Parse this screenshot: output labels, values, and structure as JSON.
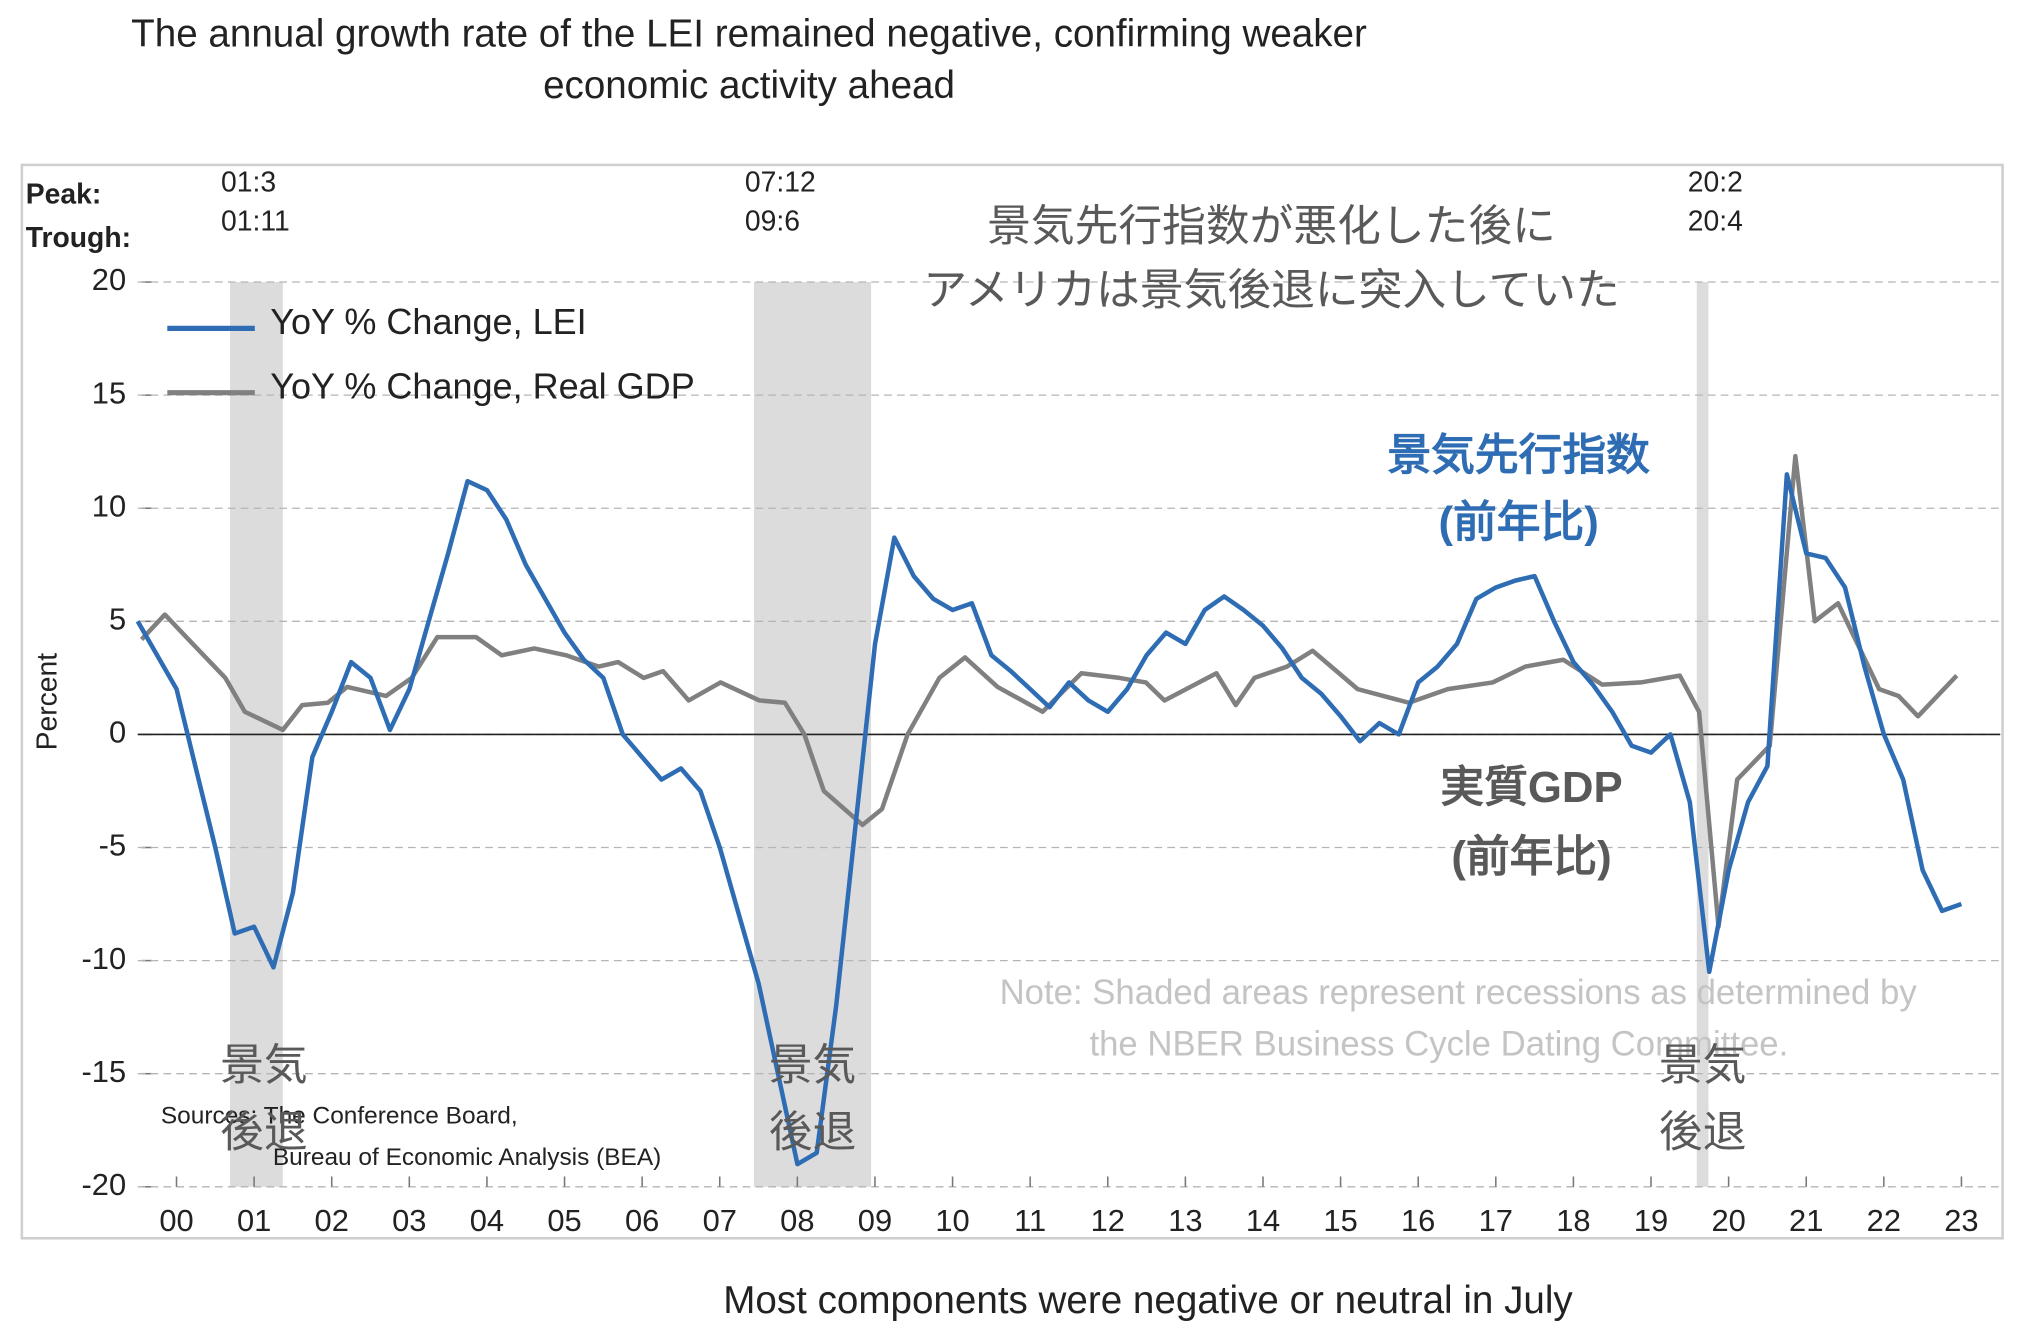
{
  "chart_data": {
    "type": "line",
    "title": [
      "The annual growth rate of the LEI remained negative, confirming weaker",
      "economic activity ahead"
    ],
    "caption": "Most components were negative or neutral in July",
    "ylabel": "Percent",
    "xlim": [
      2000,
      2024
    ],
    "ylim": [
      -20,
      20
    ],
    "yticks": [
      -20,
      -15,
      -10,
      -5,
      0,
      5,
      10,
      15,
      20
    ],
    "xticks": [
      {
        "value": 2000.5,
        "label": "00"
      },
      {
        "value": 2001.5,
        "label": "01"
      },
      {
        "value": 2002.5,
        "label": "02"
      },
      {
        "value": 2003.5,
        "label": "03"
      },
      {
        "value": 2004.5,
        "label": "04"
      },
      {
        "value": 2005.5,
        "label": "05"
      },
      {
        "value": 2006.5,
        "label": "06"
      },
      {
        "value": 2007.5,
        "label": "07"
      },
      {
        "value": 2008.5,
        "label": "08"
      },
      {
        "value": 2009.5,
        "label": "09"
      },
      {
        "value": 2010.5,
        "label": "10"
      },
      {
        "value": 2011.5,
        "label": "11"
      },
      {
        "value": 2012.5,
        "label": "12"
      },
      {
        "value": 2013.5,
        "label": "13"
      },
      {
        "value": 2014.5,
        "label": "14"
      },
      {
        "value": 2015.5,
        "label": "15"
      },
      {
        "value": 2016.5,
        "label": "16"
      },
      {
        "value": 2017.5,
        "label": "17"
      },
      {
        "value": 2018.5,
        "label": "18"
      },
      {
        "value": 2019.5,
        "label": "19"
      },
      {
        "value": 2020.5,
        "label": "20"
      },
      {
        "value": 2021.5,
        "label": "21"
      },
      {
        "value": 2022.5,
        "label": "22"
      },
      {
        "value": 2023.5,
        "label": "23"
      }
    ],
    "grid": true,
    "legend": "top-left",
    "shade_color": "#dcdcdc",
    "peak_label": "Peak:",
    "trough_label": "Trough:",
    "recessions": [
      {
        "start": 2001.19,
        "end": 2001.87,
        "peak": "01:3",
        "trough": "01:11",
        "label": [
          "景気",
          "後退"
        ]
      },
      {
        "start": 2007.94,
        "end": 2009.45,
        "peak": "07:12",
        "trough": "09:6",
        "label": [
          "景気",
          "後退"
        ]
      },
      {
        "start": 2020.09,
        "end": 2020.24,
        "peak": "20:2",
        "trough": "20:4",
        "label": [
          "景気",
          "後退"
        ]
      }
    ],
    "series": [
      {
        "name": "YoY % Change, LEI",
        "color": "#2e6db4",
        "x": [
          2000.0,
          2000.25,
          2000.5,
          2000.75,
          2001.0,
          2001.25,
          2001.5,
          2001.75,
          2002.0,
          2002.25,
          2002.5,
          2002.75,
          2003.0,
          2003.25,
          2003.5,
          2003.75,
          2004.0,
          2004.25,
          2004.5,
          2004.75,
          2005.0,
          2005.25,
          2005.5,
          2005.75,
          2006.0,
          2006.25,
          2006.5,
          2006.75,
          2007.0,
          2007.25,
          2007.5,
          2007.75,
          2008.0,
          2008.25,
          2008.5,
          2008.75,
          2009.0,
          2009.25,
          2009.5,
          2009.75,
          2010.0,
          2010.25,
          2010.5,
          2010.75,
          2011.0,
          2011.25,
          2011.5,
          2011.75,
          2012.0,
          2012.25,
          2012.5,
          2012.75,
          2013.0,
          2013.25,
          2013.5,
          2013.75,
          2014.0,
          2014.25,
          2014.5,
          2014.75,
          2015.0,
          2015.25,
          2015.5,
          2015.75,
          2016.0,
          2016.25,
          2016.5,
          2016.75,
          2017.0,
          2017.25,
          2017.5,
          2017.75,
          2018.0,
          2018.25,
          2018.5,
          2018.75,
          2019.0,
          2019.25,
          2019.5,
          2019.75,
          2020.0,
          2020.25,
          2020.5,
          2020.75,
          2021.0,
          2021.25,
          2021.5,
          2021.75,
          2022.0,
          2022.25,
          2022.5,
          2022.75,
          2023.0,
          2023.25,
          2023.5
        ],
        "values": [
          5,
          3.5,
          2,
          -1.5,
          -5,
          -8.8,
          -8.5,
          -10.3,
          -7,
          -1,
          1,
          3.2,
          2.5,
          0.2,
          2,
          5,
          8,
          11.2,
          10.8,
          9.5,
          7.5,
          6,
          4.5,
          3.3,
          2.5,
          0,
          -1,
          -2,
          -1.5,
          -2.5,
          -5,
          -8,
          -11,
          -15,
          -19,
          -18.5,
          -12,
          -4,
          4,
          8.7,
          7,
          6,
          5.5,
          5.8,
          3.5,
          2.8,
          2,
          1.2,
          2.3,
          1.5,
          1,
          2,
          3.5,
          4.5,
          4,
          5.5,
          6.1,
          5.5,
          4.8,
          3.8,
          2.5,
          1.8,
          0.8,
          -0.3,
          0.5,
          0,
          2.3,
          3,
          4,
          6,
          6.5,
          6.8,
          7,
          5,
          3.2,
          2.2,
          1,
          -0.5,
          -0.8,
          0,
          -3,
          -10.5,
          -6,
          -3,
          -1.4,
          11.5,
          8,
          7.8,
          6.5,
          3,
          0,
          -2,
          -6,
          -7.8,
          -7.5
        ]
      },
      {
        "name": "YoY % Change, Real GDP",
        "color": "#808080",
        "x": [
          2000.05,
          2000.35,
          2000.71,
          2001.13,
          2001.38,
          2001.87,
          2002.12,
          2002.45,
          2002.7,
          2003.2,
          2003.53,
          2003.86,
          2004.36,
          2004.69,
          2005.11,
          2005.52,
          2005.94,
          2006.19,
          2006.52,
          2006.77,
          2007.1,
          2007.51,
          2008.01,
          2008.34,
          2008.59,
          2008.84,
          2009.34,
          2009.59,
          2009.92,
          2010.33,
          2010.66,
          2011.08,
          2011.66,
          2012.16,
          2012.65,
          2012.99,
          2013.23,
          2013.9,
          2014.15,
          2014.39,
          2014.81,
          2015.14,
          2015.72,
          2016.38,
          2016.88,
          2017.46,
          2017.88,
          2018.37,
          2018.87,
          2019.37,
          2019.87,
          2020.12,
          2020.37,
          2020.61,
          2021.03,
          2021.36,
          2021.61,
          2021.91,
          2022.44,
          2022.69,
          2022.94,
          2023.44
        ],
        "values": [
          4.2,
          5.3,
          4,
          2.5,
          1,
          0.2,
          1.3,
          1.4,
          2.1,
          1.7,
          2.5,
          4.3,
          4.3,
          3.5,
          3.8,
          3.5,
          3,
          3.2,
          2.5,
          2.8,
          1.5,
          2.3,
          1.5,
          1.4,
          0,
          -2.5,
          -4,
          -3.3,
          0,
          2.5,
          3.4,
          2.1,
          1,
          2.7,
          2.5,
          2.3,
          1.5,
          2.7,
          1.3,
          2.5,
          3,
          3.7,
          2,
          1.4,
          2,
          2.3,
          3,
          3.3,
          2.2,
          2.3,
          2.6,
          1,
          -8.5,
          -2,
          -0.5,
          12.3,
          5,
          5.8,
          2,
          1.7,
          0.8,
          2.6
        ]
      }
    ],
    "heading": [
      "景気先行指数が悪化した後に",
      "アメリカは景気後退に突入していた"
    ],
    "lei_annotation": [
      "景気先行指数",
      "(前年比)"
    ],
    "gdp_annotation": [
      "実質GDP",
      "(前年比)"
    ],
    "note": [
      "Note: Shaded areas represent recessions as determined by",
      "the NBER Business Cycle Dating Committee."
    ],
    "sources": [
      "Sources: The Conference Board,",
      "Bureau of Economic Analysis (BEA)"
    ]
  }
}
